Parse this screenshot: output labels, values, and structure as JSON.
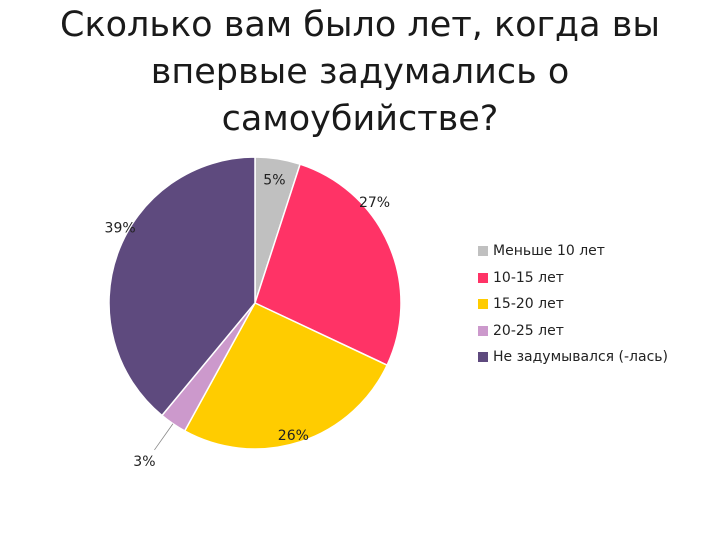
{
  "slide": {
    "title_lines": [
      "Сколько вам было лет, когда вы",
      "впервые задумались о",
      "самоубийстве?"
    ]
  },
  "chart_data": {
    "type": "pie",
    "title": "Сколько вам было лет, когда вы впервые задумались о самоубийстве?",
    "categories": [
      "Меньше 10 лет",
      "10-15 лет",
      "15-20 лет",
      "20-25 лет",
      "Не задумывался (-лась)"
    ],
    "values": [
      5,
      27,
      26,
      3,
      39
    ],
    "data_labels": [
      "5%",
      "27%",
      "26%",
      "3%",
      "39%"
    ],
    "colors": [
      "#c0c0c0",
      "#ff3366",
      "#ffcc00",
      "#cc99cc",
      "#5e4a7e"
    ],
    "legend_position": "right",
    "start_angle_deg": 0,
    "direction": "clockwise"
  }
}
